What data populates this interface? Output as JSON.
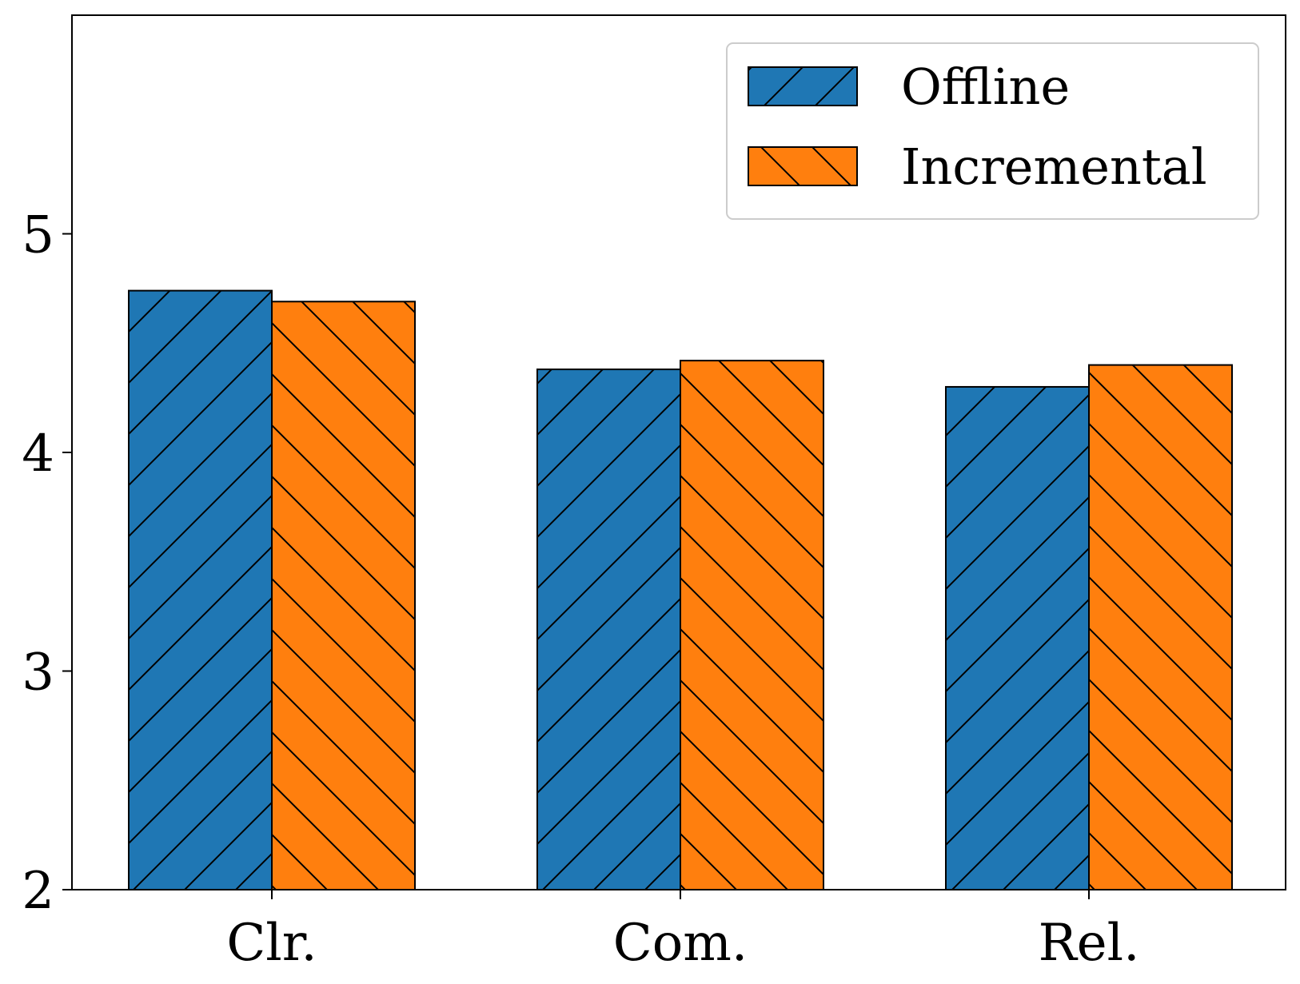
{
  "chart_data": {
    "type": "bar",
    "title": "",
    "xlabel": "",
    "ylabel": "",
    "categories": [
      "Clr.",
      "Com.",
      "Rel."
    ],
    "series": [
      {
        "name": "Offline",
        "values": [
          4.74,
          4.38,
          4.3
        ],
        "color": "#1f77b4",
        "hatch": "forward-diagonal"
      },
      {
        "name": "Incremental",
        "values": [
          4.69,
          4.42,
          4.4
        ],
        "color": "#ff7f0e",
        "hatch": "back-diagonal"
      }
    ],
    "ylim": [
      2,
      6
    ],
    "yticks": [
      {
        "value": 2,
        "label": "2"
      },
      {
        "value": 3,
        "label": "3"
      },
      {
        "value": 4,
        "label": "4"
      },
      {
        "value": 5,
        "label": "5"
      }
    ],
    "grid": false,
    "legend_position": "top-right"
  }
}
